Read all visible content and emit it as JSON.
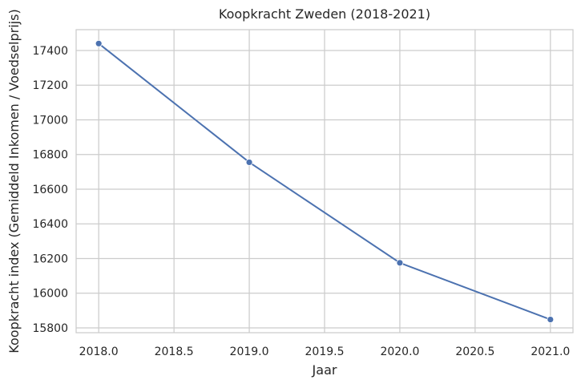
{
  "chart_data": {
    "type": "line",
    "title": "Koopkracht Zweden (2018-2021)",
    "xlabel": "Jaar",
    "ylabel": "Koopkracht index (Gemiddeld Inkomen / Voedselprijs)",
    "x": [
      2018,
      2019,
      2020,
      2021
    ],
    "series": [
      {
        "values": [
          17440,
          16755,
          16175,
          15848
        ]
      }
    ],
    "xlim": [
      2017.85,
      2021.15
    ],
    "ylim": [
      15772,
      17520
    ],
    "xticks": [
      2018.0,
      2018.5,
      2019.0,
      2019.5,
      2020.0,
      2020.5,
      2021.0
    ],
    "xtick_labels": [
      "2018.0",
      "2018.5",
      "2019.0",
      "2019.5",
      "2020.0",
      "2020.5",
      "2021.0"
    ],
    "yticks": [
      15800,
      16000,
      16200,
      16400,
      16600,
      16800,
      17000,
      17200,
      17400
    ],
    "ytick_labels": [
      "15800",
      "16000",
      "16200",
      "16400",
      "16600",
      "16800",
      "17000",
      "17200",
      "17400"
    ],
    "grid": true,
    "line_color": "#4c72b0",
    "grid_color": "#cccccc",
    "axes_color": "#cccccc"
  }
}
